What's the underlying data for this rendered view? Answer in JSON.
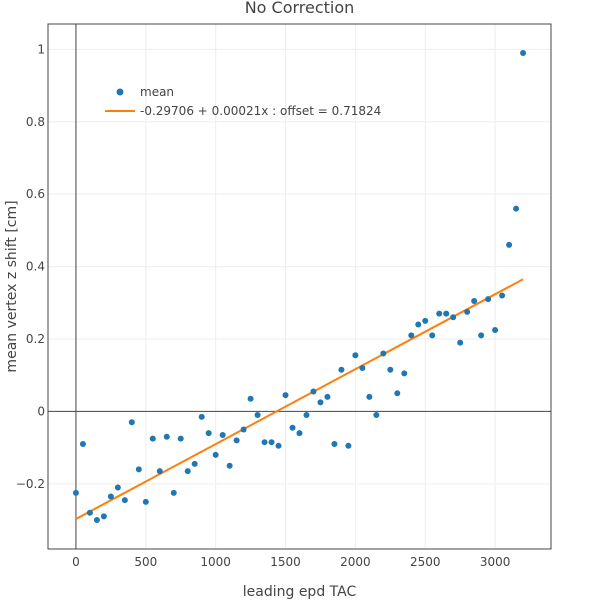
{
  "chart_data": {
    "type": "scatter",
    "title": "No Correction",
    "xlabel": "leading epd TAC",
    "ylabel": "mean vertex z shift [cm]",
    "xlim": [
      -200,
      3400
    ],
    "ylim": [
      -0.38,
      1.07
    ],
    "x_ticks": [
      0,
      500,
      1000,
      1500,
      2000,
      2500,
      3000
    ],
    "x_tick_labels": [
      "0",
      "500",
      "1000",
      "1500",
      "2000",
      "2500",
      "3000"
    ],
    "y_ticks": [
      -0.2,
      0,
      0.2,
      0.4,
      0.6,
      0.8,
      1
    ],
    "y_tick_labels": [
      "−0.2",
      "0",
      "0.2",
      "0.4",
      "0.6",
      "0.8",
      "1"
    ],
    "grid": true,
    "legend_position": "top-left",
    "colors": {
      "scatter": "#1f77b4",
      "fit": "#ff7f0e",
      "zeroline": "#444444",
      "grid": "#eeeeee"
    },
    "series": [
      {
        "name": "mean",
        "mode": "markers",
        "x": [
          0,
          50,
          100,
          150,
          200,
          250,
          300,
          350,
          400,
          450,
          500,
          550,
          600,
          650,
          700,
          750,
          800,
          850,
          900,
          950,
          1000,
          1050,
          1100,
          1150,
          1200,
          1250,
          1300,
          1350,
          1400,
          1450,
          1500,
          1550,
          1600,
          1650,
          1700,
          1750,
          1800,
          1850,
          1900,
          1950,
          2000,
          2050,
          2100,
          2150,
          2200,
          2250,
          2300,
          2350,
          2400,
          2450,
          2500,
          2550,
          2600,
          2650,
          2700,
          2750,
          2800,
          2850,
          2900,
          2950,
          3000,
          3050,
          3100,
          3150,
          3200
        ],
        "y": [
          -0.225,
          -0.09,
          -0.28,
          -0.3,
          -0.29,
          -0.235,
          -0.21,
          -0.245,
          -0.03,
          -0.16,
          -0.25,
          -0.075,
          -0.165,
          -0.07,
          -0.225,
          -0.075,
          -0.165,
          -0.145,
          -0.015,
          -0.06,
          -0.12,
          -0.065,
          -0.15,
          -0.08,
          -0.05,
          0.035,
          -0.01,
          -0.085,
          -0.085,
          -0.095,
          0.045,
          -0.045,
          -0.06,
          -0.01,
          0.055,
          0.025,
          0.04,
          -0.09,
          0.115,
          -0.095,
          0.155,
          0.12,
          0.04,
          -0.01,
          0.16,
          0.115,
          0.05,
          0.105,
          0.21,
          0.24,
          0.25,
          0.21,
          0.27,
          0.27,
          0.26,
          0.19,
          0.275,
          0.305,
          0.21,
          0.31,
          0.225,
          0.32,
          0.46,
          0.56,
          0.99
        ]
      },
      {
        "name": "-0.29706 + 0.00021x : offset = 0.71824",
        "mode": "line",
        "x": [
          0,
          3200
        ],
        "y": [
          -0.29706,
          0.36494
        ]
      }
    ]
  }
}
